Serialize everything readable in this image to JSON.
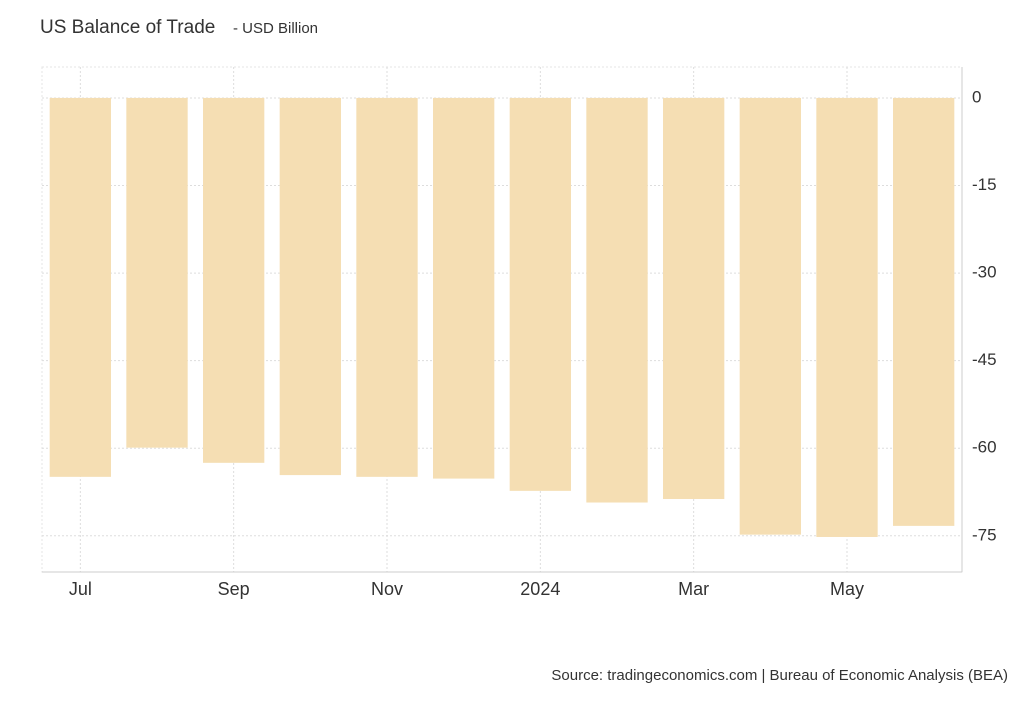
{
  "chart_data": {
    "type": "bar",
    "title": "US Balance of Trade",
    "subtitle": "- USD Billion",
    "source": "Source: tradingeconomics.com | Bureau of Economic Analysis (BEA)",
    "categories": [
      "Jul",
      null,
      "Sep",
      null,
      "Nov",
      null,
      "2024",
      null,
      "Mar",
      null,
      "May",
      null
    ],
    "values": [
      -64.9,
      -59.9,
      -62.5,
      -64.6,
      -64.9,
      -65.2,
      -67.3,
      -69.3,
      -68.7,
      -74.8,
      -75.2,
      -73.3
    ],
    "color": "#f5deb3",
    "ylim": [
      -81.2,
      5.3
    ],
    "yticks": [
      0,
      -15,
      -30,
      -45,
      -60,
      -75
    ],
    "grid": true
  }
}
